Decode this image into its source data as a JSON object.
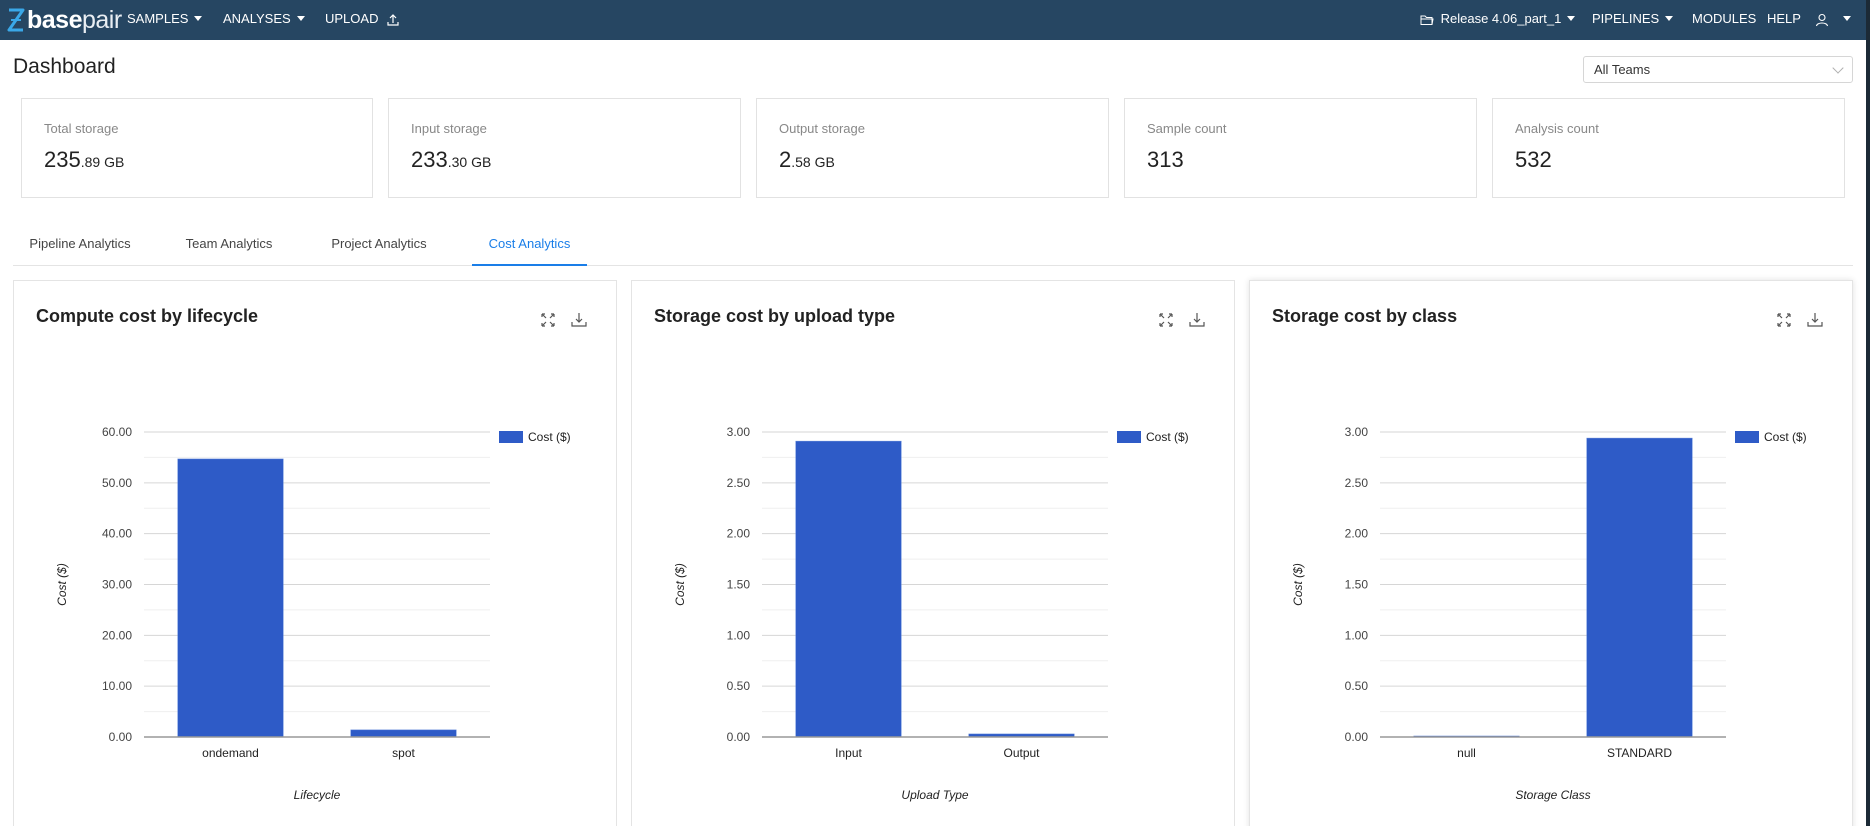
{
  "navbar": {
    "logo_bold": "base",
    "logo_light": "pair",
    "items_left": [
      {
        "label": "SAMPLES",
        "has_caret": true
      },
      {
        "label": "ANALYSES",
        "has_caret": true
      },
      {
        "label": "UPLOAD",
        "icon": "upload-icon"
      }
    ],
    "project": {
      "label": "Release 4.06_part_1",
      "icon": "folder-icon"
    },
    "items_right": [
      {
        "label": "PIPELINES",
        "has_caret": true
      },
      {
        "label": "MODULES"
      },
      {
        "label": "HELP"
      }
    ],
    "user_icon": "user-icon"
  },
  "header": {
    "title": "Dashboard",
    "team_select": {
      "value": "All Teams"
    }
  },
  "stats": [
    {
      "label": "Total storage",
      "value_main": "235",
      "value_small": ".89 GB"
    },
    {
      "label": "Input storage",
      "value_main": "233",
      "value_small": ".30 GB"
    },
    {
      "label": "Output storage",
      "value_main": "2",
      "value_small": ".58 GB"
    },
    {
      "label": "Sample count",
      "value_main": "313",
      "value_small": ""
    },
    {
      "label": "Analysis count",
      "value_main": "532",
      "value_small": ""
    }
  ],
  "tabs": [
    {
      "label": "Pipeline Analytics",
      "active": false
    },
    {
      "label": "Team Analytics",
      "active": false
    },
    {
      "label": "Project Analytics",
      "active": false
    },
    {
      "label": "Cost Analytics",
      "active": true
    }
  ],
  "colors": {
    "navbar": "#264662",
    "accent": "#1a7ee8",
    "bar": "#2e5bc7"
  },
  "panels": [
    {
      "title": "Compute cost by lifecycle",
      "actions": [
        "expand-icon",
        "download-icon"
      ]
    },
    {
      "title": "Storage cost by upload type",
      "actions": [
        "expand-icon",
        "download-icon"
      ]
    },
    {
      "title": "Storage cost by class",
      "actions": [
        "expand-icon",
        "download-icon"
      ]
    }
  ],
  "chart_data": [
    {
      "type": "bar",
      "title": "Compute cost by lifecycle",
      "categories": [
        "ondemand",
        "spot"
      ],
      "series": [
        {
          "name": "Cost ($)",
          "values": [
            54.7,
            1.4
          ]
        }
      ],
      "xlabel": "Lifecycle",
      "ylabel": "Cost ($)",
      "ylim": [
        0,
        60
      ],
      "yticks": [
        "0.00",
        "10.00",
        "20.00",
        "30.00",
        "40.00",
        "50.00",
        "60.00"
      ],
      "grid": true,
      "legend_position": "right"
    },
    {
      "type": "bar",
      "title": "Storage cost by upload type",
      "categories": [
        "Input",
        "Output"
      ],
      "series": [
        {
          "name": "Cost ($)",
          "values": [
            2.91,
            0.03
          ]
        }
      ],
      "xlabel": "Upload Type",
      "ylabel": "Cost ($)",
      "ylim": [
        0,
        3
      ],
      "yticks": [
        "0.00",
        "0.50",
        "1.00",
        "1.50",
        "2.00",
        "2.50",
        "3.00"
      ],
      "grid": true,
      "legend_position": "right"
    },
    {
      "type": "bar",
      "title": "Storage cost by class",
      "categories": [
        "null",
        "STANDARD"
      ],
      "series": [
        {
          "name": "Cost ($)",
          "values": [
            0.005,
            2.94
          ]
        }
      ],
      "xlabel": "Storage Class",
      "ylabel": "Cost ($)",
      "ylim": [
        0,
        3
      ],
      "yticks": [
        "0.00",
        "0.50",
        "1.00",
        "1.50",
        "2.00",
        "2.50",
        "3.00"
      ],
      "grid": true,
      "legend_position": "right"
    }
  ]
}
